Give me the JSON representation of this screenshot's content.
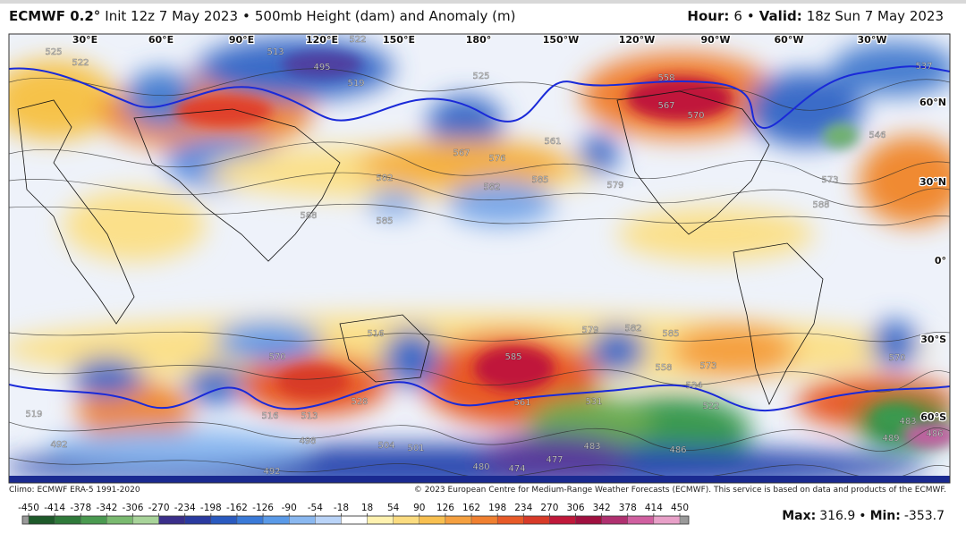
{
  "header": {
    "model": "ECMWF 0.2°",
    "init": "Init 12z 7 May 2023",
    "separator": "•",
    "field": "500mb Height (dam) and Anomaly (m)",
    "hour_label": "Hour:",
    "hour": "6",
    "valid_label": "Valid:",
    "valid": "18z Sun 7 May 2023"
  },
  "longitude_labels": [
    "30°E",
    "60°E",
    "90°E",
    "120°E",
    "150°E",
    "180°",
    "150°W",
    "120°W",
    "90°W",
    "60°W",
    "30°W"
  ],
  "latitude_labels": [
    "60°N",
    "30°N",
    "0°",
    "30°S",
    "60°S"
  ],
  "contour_labels": [
    "522",
    "525",
    "513",
    "495",
    "522",
    "519",
    "525",
    "561",
    "567",
    "576",
    "582",
    "582",
    "585",
    "585",
    "588",
    "579",
    "558",
    "567",
    "570",
    "546",
    "573",
    "588",
    "537",
    "570",
    "516",
    "579",
    "582",
    "585",
    "573",
    "558",
    "534",
    "522",
    "585",
    "561",
    "531",
    "528",
    "516",
    "513",
    "519",
    "492",
    "498",
    "504",
    "501",
    "483",
    "486",
    "474",
    "477",
    "480",
    "492",
    "489",
    "483",
    "486",
    "570"
  ],
  "footer": {
    "climo": "Climo: ECMWF ERA-5 1991-2020",
    "copyright": "© 2023 European Centre for Medium-Range Weather Forecasts (ECMWF). This service is based on data and products of the ECMWF."
  },
  "colorbar": {
    "ticks": [
      -450,
      -414,
      -378,
      -342,
      -306,
      -270,
      -234,
      -198,
      -162,
      -126,
      -90,
      -54,
      -18,
      18,
      54,
      90,
      126,
      162,
      198,
      234,
      270,
      306,
      342,
      378,
      414,
      450
    ],
    "colors": [
      "#1e5a2a",
      "#2f7a3a",
      "#4a9a50",
      "#7aba70",
      "#a8d49a",
      "#3a2e8a",
      "#2a3aa0",
      "#2a5ac0",
      "#3a7ad8",
      "#5a9ae8",
      "#8ab8f0",
      "#bad4f8",
      "#ffffff",
      "#fff2b0",
      "#fbdc80",
      "#f8c050",
      "#f5a040",
      "#f08030",
      "#e85a28",
      "#d83a28",
      "#c0183a",
      "#a01040",
      "#b03070",
      "#d060a0",
      "#e8a0c8"
    ]
  },
  "stats": {
    "max_label": "Max:",
    "max": 316.9,
    "separator": "•",
    "min_label": "Min:",
    "min": -353.7
  }
}
